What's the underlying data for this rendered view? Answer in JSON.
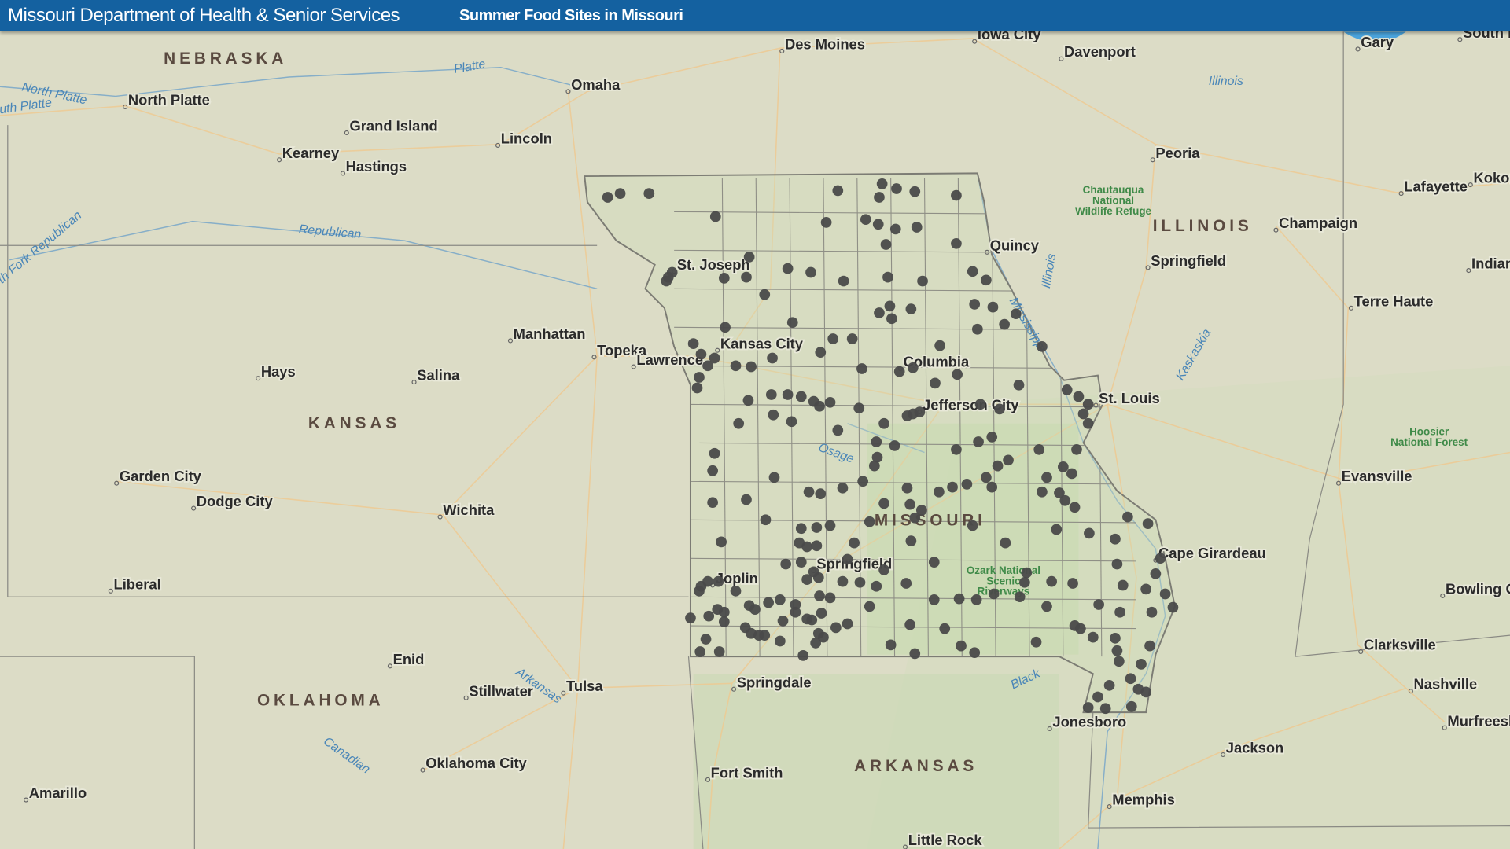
{
  "header": {
    "organization": "Missouri Department of Health & Senior Services",
    "title": "Summer Food Sites in Missouri"
  },
  "colors": {
    "header": "#1461a0",
    "site_marker": "#4a4a4a",
    "map_background": "#dcdcc6",
    "state_border": "#7c7c74"
  },
  "map": {
    "states": [
      "NEBRASKA",
      "KANSAS",
      "OKLAHOMA",
      "MISSOURI",
      "ARKANSAS",
      "ILLINOIS"
    ],
    "cities": [
      "Des Moines",
      "Iowa City",
      "Davenport",
      "Gary",
      "South Be",
      "Omaha",
      "North Platte",
      "Grand Island",
      "Lincoln",
      "Kearney",
      "Hastings",
      "Peoria",
      "Lafayette",
      "Kokom",
      "Champaign",
      "Springfield",
      "Indiana",
      "Terre Haute",
      "Quincy",
      "St. Joseph",
      "Kansas City",
      "Manhattan",
      "Topeka",
      "Lawrence",
      "Hays",
      "Salina",
      "Columbia",
      "Jefferson City",
      "St. Louis",
      "Evansville",
      "Garden City",
      "Dodge City",
      "Wichita",
      "Liberal",
      "Cape Girardeau",
      "Springfield",
      "Bowling Gre",
      "Clarksville",
      "Nashville",
      "Murfreesbo",
      "Enid",
      "Stillwater",
      "Tulsa",
      "Springdale",
      "Jonesboro",
      "Jackson",
      "Oklahoma City",
      "Fort Smith",
      "Memphis",
      "Amarillo",
      "Little Rock",
      "Joplin"
    ],
    "rivers": [
      "North Platte",
      "uth Platte",
      "Platte",
      "Republican",
      "th Fork Republican",
      "Illinois",
      "Illinois",
      "Mississippi",
      "Kaskaskia",
      "Osage",
      "Arkansas",
      "Canadian",
      "Black"
    ],
    "parks": [
      "Chautauqua National Wildlife Refuge",
      "Hoosier National Forest",
      "Ozark National Scenic Riverways"
    ]
  }
}
